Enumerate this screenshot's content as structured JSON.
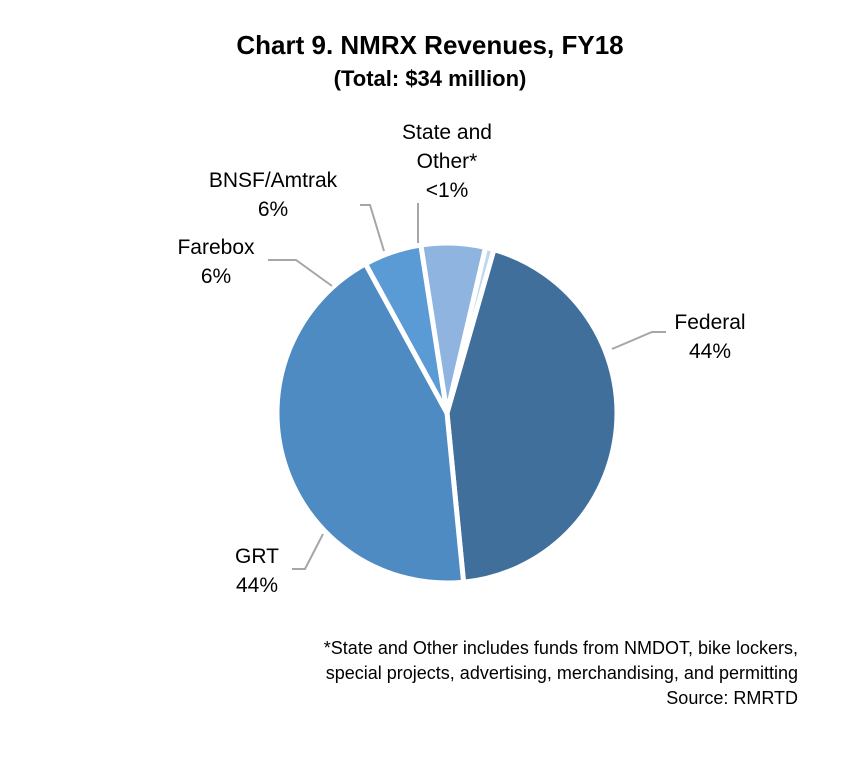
{
  "chart_data": {
    "type": "pie",
    "title": "Chart 9. NMRX Revenues, FY18",
    "subtitle": "(Total: $34 million)",
    "slices": [
      {
        "name": "Federal",
        "label_lines": [
          "Federal"
        ],
        "value_label": "44%",
        "value": 44.0,
        "color": "#416f9b"
      },
      {
        "name": "GRT",
        "label_lines": [
          "GRT"
        ],
        "value_label": "44%",
        "value": 43.6,
        "color": "#4f8bc3"
      },
      {
        "name": "Farebox",
        "label_lines": [
          "Farebox"
        ],
        "value_label": "6%",
        "value": 5.5,
        "color": "#5b9bd5"
      },
      {
        "name": "BNSF/Amtrak",
        "label_lines": [
          "BNSF/Amtrak"
        ],
        "value_label": "6%",
        "value": 6.1,
        "color": "#8eb4df"
      },
      {
        "name": "State and Other*",
        "label_lines": [
          "State and",
          "Other*"
        ],
        "value_label": "<1%",
        "value": 0.8,
        "color": "#bdd7ee"
      }
    ],
    "leader_line_color": "#a6a6a6"
  },
  "footnote": {
    "lines": [
      "*State and Other includes funds from NMDOT, bike lockers,",
      "special projects, advertising, merchandising, and permitting"
    ],
    "source": "Source: RMRTD"
  }
}
